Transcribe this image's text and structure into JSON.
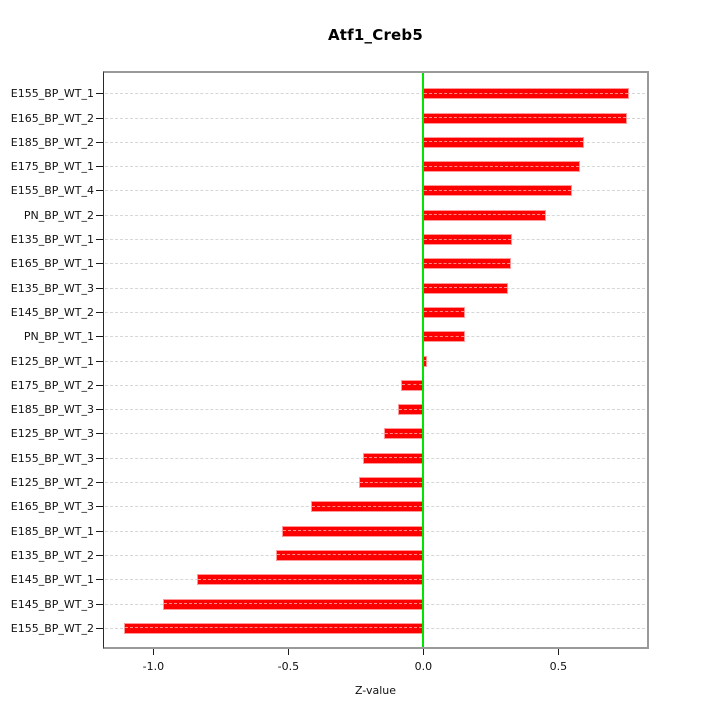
{
  "title": "Atf1_Creb5",
  "chart_data": {
    "type": "bar",
    "orientation": "horizontal",
    "title": "Atf1_Creb5",
    "xlabel": "Z-value",
    "ylabel": "",
    "categories": [
      "E155_BP_WT_1",
      "E165_BP_WT_2",
      "E185_BP_WT_2",
      "E175_BP_WT_1",
      "E155_BP_WT_4",
      "PN_BP_WT_2",
      "E135_BP_WT_1",
      "E165_BP_WT_1",
      "E135_BP_WT_3",
      "E145_BP_WT_2",
      "PN_BP_WT_1",
      "E125_BP_WT_1",
      "E175_BP_WT_2",
      "E185_BP_WT_3",
      "E125_BP_WT_3",
      "E155_BP_WT_3",
      "E125_BP_WT_2",
      "E165_BP_WT_3",
      "E185_BP_WT_1",
      "E135_BP_WT_2",
      "E145_BP_WT_1",
      "E145_BP_WT_3",
      "E155_BP_WT_2"
    ],
    "values": [
      0.76,
      0.755,
      0.595,
      0.58,
      0.55,
      0.455,
      0.33,
      0.325,
      0.315,
      0.155,
      0.155,
      0.013,
      -0.083,
      -0.093,
      -0.145,
      -0.223,
      -0.24,
      -0.417,
      -0.524,
      -0.547,
      -0.84,
      -0.963,
      -1.11
    ],
    "xlim": [
      -1.183,
      0.828
    ],
    "x_ticks": [
      "-1.0",
      "-0.5",
      "0.0",
      "0.5"
    ],
    "x_tick_values": [
      -1.0,
      -0.5,
      0.0,
      0.5
    ],
    "grid": "horizontal dashed line per category row",
    "legend": "none",
    "colors": {
      "bar": "#ff0000",
      "bar_border": "#ff9999",
      "zero_line": "#00e400",
      "grid_line": "#d6d6d6",
      "plot_border": "#999999",
      "axis_text": "#111111",
      "background": "#ffffff"
    }
  }
}
